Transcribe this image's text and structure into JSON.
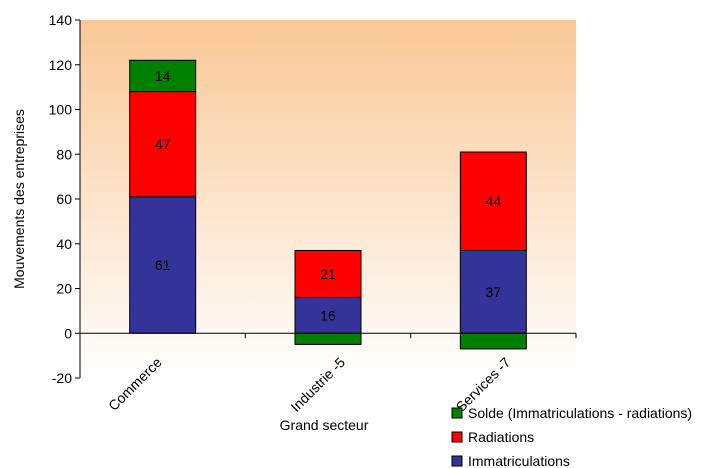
{
  "chart_data": {
    "type": "bar",
    "stacked": true,
    "categories": [
      "Commerce",
      "Industrie",
      "Services"
    ],
    "series": [
      {
        "name": "Immatriculations",
        "color": "#333399",
        "values": [
          61,
          16,
          37
        ]
      },
      {
        "name": "Radiations",
        "color": "#ff0000",
        "values": [
          47,
          21,
          44
        ]
      },
      {
        "name": "Solde (Immatriculations - radiations)",
        "color": "#008000",
        "values": [
          14,
          -5,
          -7
        ]
      }
    ],
    "bar_labels": {
      "Commerce": [
        "61",
        "47",
        "14"
      ],
      "Industrie": [
        "16",
        "21",
        "-5"
      ],
      "Services": [
        "37",
        "44",
        "-7"
      ]
    },
    "xlabel": "Grand secteur",
    "ylabel": "Mouvements des entreprises",
    "ylim": [
      -20,
      140
    ],
    "yticks": [
      "-20",
      "0",
      "20",
      "40",
      "60",
      "80",
      "100",
      "120",
      "140"
    ],
    "legend_position": "bottom-right",
    "plot_background": "peach-to-white gradient"
  }
}
